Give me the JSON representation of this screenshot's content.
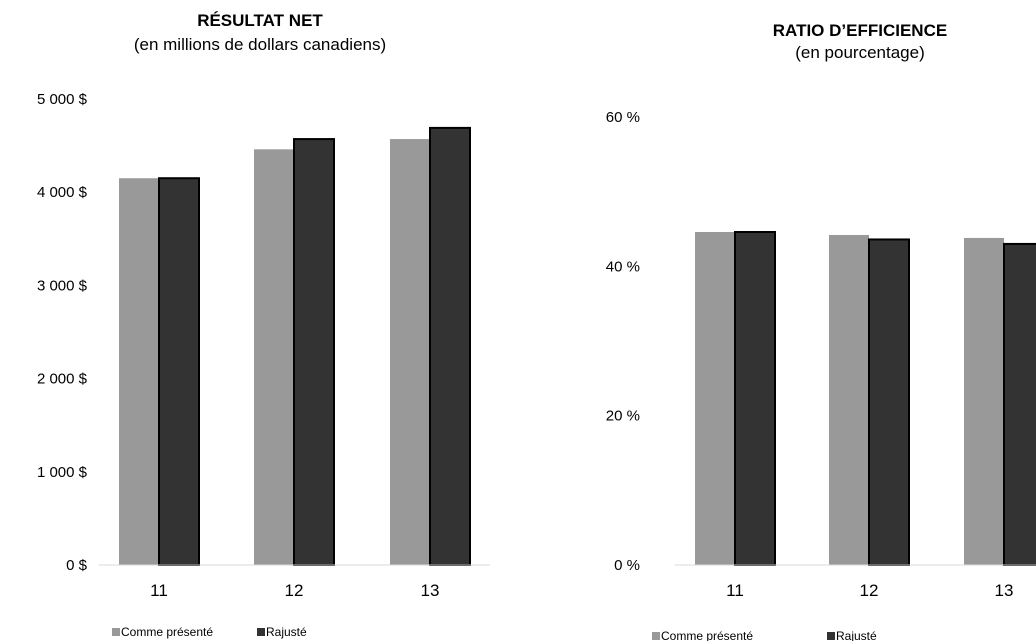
{
  "chart_data": [
    {
      "type": "bar",
      "title": "RÉSULTAT NET",
      "subtitle": "(en millions de dollars canadiens)",
      "categories": [
        "11",
        "12",
        "13"
      ],
      "series": [
        {
          "name": "Comme présenté",
          "values": [
            4150,
            4460,
            4570
          ],
          "color": "#999999"
        },
        {
          "name": "Rajusté",
          "values": [
            4150,
            4570,
            4690
          ],
          "color": "#333333"
        }
      ],
      "yticks": [
        "0 $",
        "1 000 $",
        "2 000 $",
        "3 000 $",
        "4 000 $",
        "5 000 $"
      ],
      "ylim": [
        0,
        5000
      ],
      "legend_position": "bottom-left"
    },
    {
      "type": "bar",
      "title": "RATIO D’EFFICIENCE",
      "subtitle": "(en pourcentage)",
      "categories": [
        "11",
        "12",
        "13"
      ],
      "series": [
        {
          "name": "Comme présenté",
          "values": [
            44.6,
            44.2,
            43.8
          ],
          "color": "#999999"
        },
        {
          "name": "Rajusté",
          "values": [
            44.6,
            43.6,
            43.0
          ],
          "color": "#333333"
        }
      ],
      "yticks": [
        "0 %",
        "20 %",
        "40 %",
        "60 %"
      ],
      "ylim": [
        0,
        60
      ],
      "legend_position": "bottom-left"
    }
  ]
}
